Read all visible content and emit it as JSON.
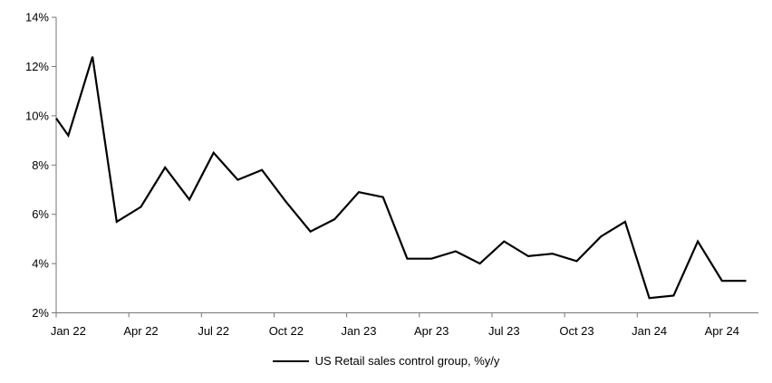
{
  "chart_data": {
    "type": "line",
    "title": "",
    "grid": false,
    "x_categories": [
      "Jan 22",
      "Feb 22",
      "Mar 22",
      "Apr 22",
      "May 22",
      "Jun 22",
      "Jul 22",
      "Aug 22",
      "Sep 22",
      "Oct 22",
      "Nov 22",
      "Dec 22",
      "Jan 23",
      "Feb 23",
      "Mar 23",
      "Apr 23",
      "May 23",
      "Jun 23",
      "Jul 23",
      "Aug 23",
      "Sep 23",
      "Oct 23",
      "Nov 23",
      "Dec 23",
      "Jan 24",
      "Feb 24",
      "Mar 24",
      "Apr 24",
      "May 24"
    ],
    "series": [
      {
        "name": "US Retail sales control group, %y/y",
        "color": "#000000",
        "lead_in_value_at_axis": 9.9,
        "values": [
          9.2,
          12.4,
          5.7,
          6.3,
          7.9,
          6.6,
          8.5,
          7.4,
          7.8,
          6.5,
          5.3,
          5.8,
          6.9,
          6.7,
          4.2,
          4.2,
          4.5,
          4.0,
          4.9,
          4.3,
          4.4,
          4.1,
          5.1,
          5.7,
          2.6,
          2.7,
          4.9,
          3.3,
          3.3
        ]
      }
    ],
    "x_axis": {
      "tick_labels": [
        "Jan 22",
        "Apr 22",
        "Jul 22",
        "Oct 22",
        "Jan 23",
        "Apr 23",
        "Jul 23",
        "Oct 23",
        "Jan 24",
        "Apr 24"
      ],
      "months_per_tick": 3
    },
    "y_axis": {
      "min": 2,
      "max": 14,
      "step": 2,
      "tick_labels": [
        "2%",
        "4%",
        "6%",
        "8%",
        "10%",
        "12%",
        "14%"
      ],
      "unit": "%"
    },
    "legend": {
      "label": "US Retail sales control group, %y/y",
      "position": "bottom-center"
    },
    "style": {
      "axis_color": "#767676",
      "text_color": "#000000",
      "line_color": "#000000",
      "background": "#ffffff"
    }
  }
}
